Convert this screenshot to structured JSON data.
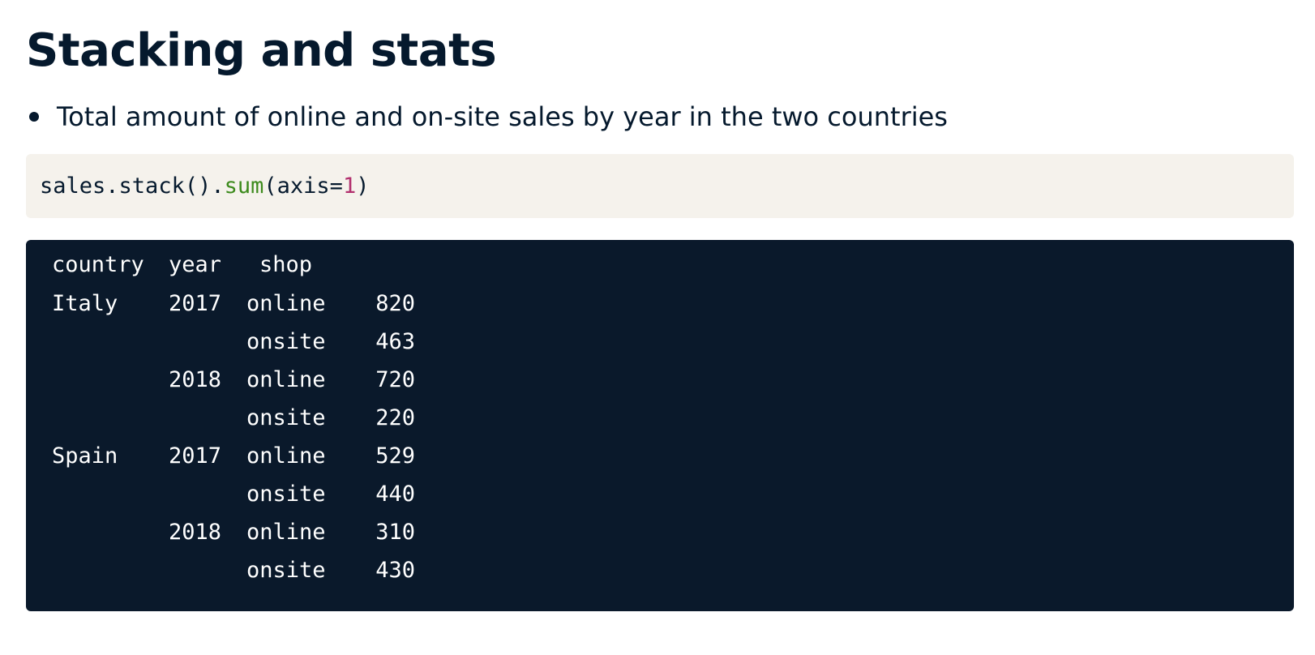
{
  "slide": {
    "title": "Stacking and stats",
    "bullet": "Total amount of online and on-site sales by year in the two countries"
  },
  "code": {
    "object": "sales",
    "dot1": ".",
    "method1": "stack",
    "parens1": "()",
    "dot2": ".",
    "method2": "sum",
    "open": "(",
    "kwarg": "axis=",
    "value": "1",
    "close": ")"
  },
  "output": {
    "headers": [
      "country",
      "year",
      "shop"
    ],
    "rows": [
      {
        "country": "Italy",
        "year": "2017",
        "shop": "online",
        "value": "820"
      },
      {
        "country": "",
        "year": "",
        "shop": "onsite",
        "value": "463"
      },
      {
        "country": "",
        "year": "2018",
        "shop": "online",
        "value": "720"
      },
      {
        "country": "",
        "year": "",
        "shop": "onsite",
        "value": "220"
      },
      {
        "country": "Spain",
        "year": "2017",
        "shop": "online",
        "value": "529"
      },
      {
        "country": "",
        "year": "",
        "shop": "onsite",
        "value": "440"
      },
      {
        "country": "",
        "year": "2018",
        "shop": "online",
        "value": "310"
      },
      {
        "country": "",
        "year": "",
        "shop": "onsite",
        "value": "430"
      }
    ]
  },
  "colors": {
    "text": "#05192d",
    "code_background": "#f5f2ec",
    "output_background": "#0a192b",
    "function_token": "#3c8a1c",
    "number_token": "#b2306e"
  }
}
